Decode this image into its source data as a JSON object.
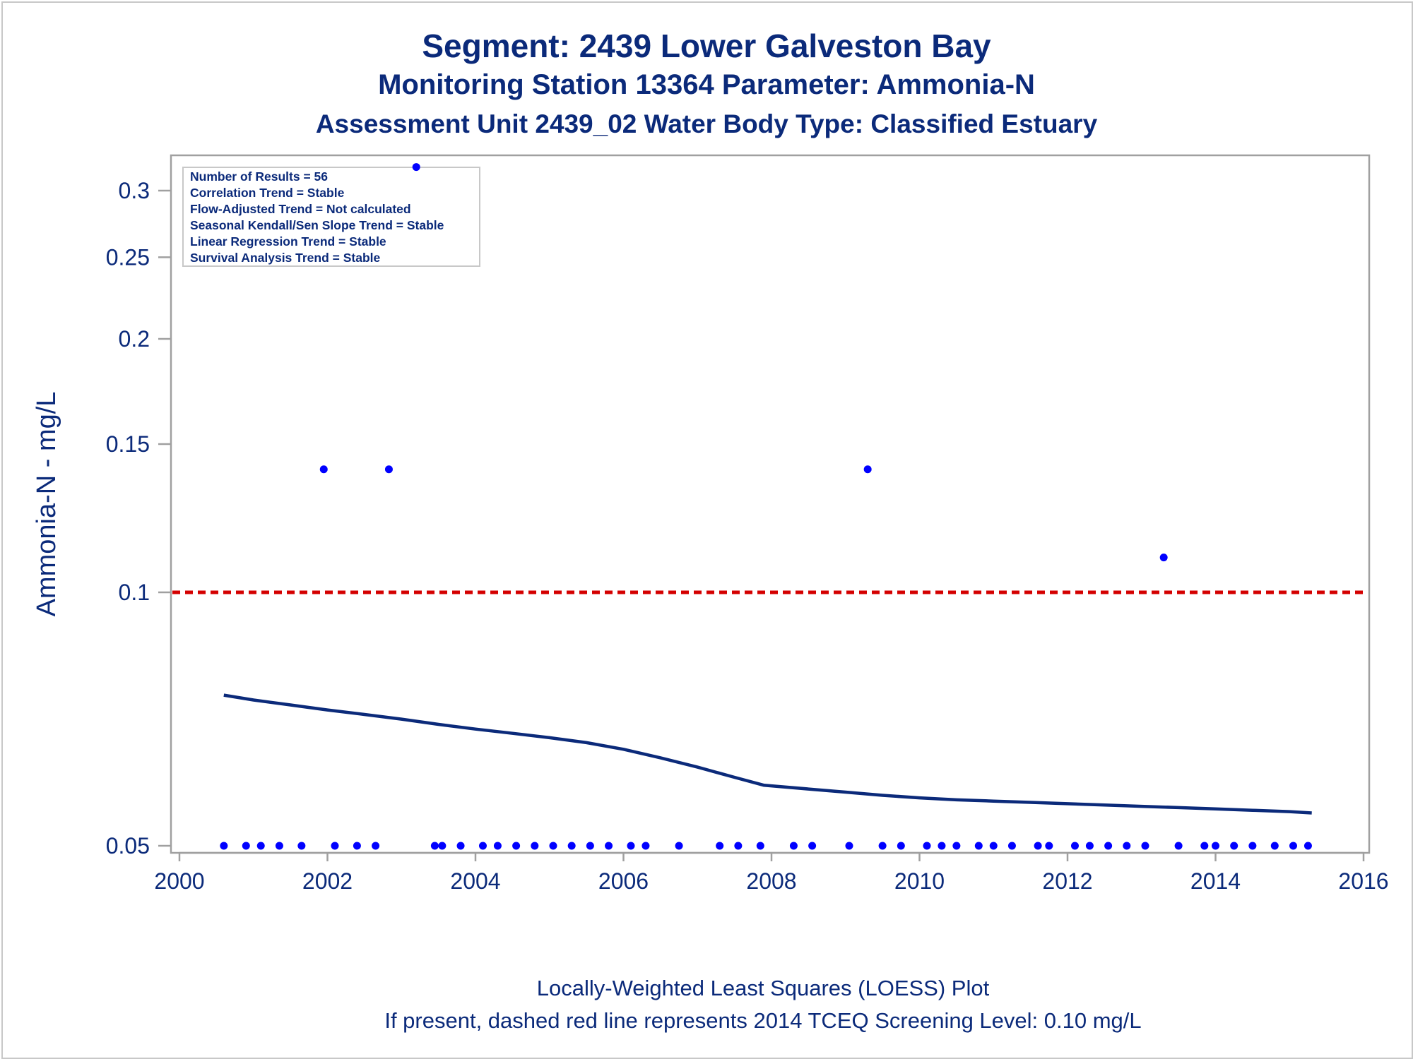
{
  "title": "Segment: 2439  Lower Galveston Bay",
  "subtitle": "Monitoring Station 13364 Parameter: Ammonia-N",
  "subtitle2": "Assessment Unit 2439_02   Water Body Type: Classified Estuary",
  "footnote1": "Locally-Weighted Least Squares (LOESS) Plot",
  "footnote2": "If present, dashed red line represents 2014 TCEQ Screening Level: 0.10 mg/L",
  "stats": [
    "Number of Results = 56",
    "Correlation Trend = Stable",
    "Flow-Adjusted Trend = Not calculated",
    "Seasonal Kendall/Sen Slope Trend = Stable",
    "Linear Regression Trend = Stable",
    "Survival Analysis Trend = Stable"
  ],
  "colors": {
    "text": "#0b2a7a",
    "points": "#0000ff",
    "loess": "#0b2a7a",
    "screening": "#d40000",
    "frame": "#a0a0a0"
  },
  "chart_data": {
    "type": "scatter",
    "yscale": "log",
    "ylabel": "Ammonia-N - mg/L",
    "xlabel": "",
    "xlim": [
      2000,
      2016
    ],
    "ylim": [
      0.048,
      0.325
    ],
    "xticks": [
      "2000",
      "2002",
      "2004",
      "2006",
      "2008",
      "2010",
      "2012",
      "2014",
      "2016"
    ],
    "xtick_values": [
      2000,
      2002,
      2004,
      2006,
      2008,
      2010,
      2012,
      2014,
      2016
    ],
    "yticks": [
      "0.05",
      "0.1",
      "0.15",
      "0.2",
      "0.25",
      "0.3"
    ],
    "ytick_values": [
      0.05,
      0.1,
      0.15,
      0.2,
      0.25,
      0.3
    ],
    "screening_level": 0.1,
    "points": [
      {
        "x": 2000.6,
        "y": 0.05
      },
      {
        "x": 2000.9,
        "y": 0.05
      },
      {
        "x": 2001.1,
        "y": 0.05
      },
      {
        "x": 2001.35,
        "y": 0.05
      },
      {
        "x": 2001.65,
        "y": 0.05
      },
      {
        "x": 2001.95,
        "y": 0.14
      },
      {
        "x": 2002.1,
        "y": 0.05
      },
      {
        "x": 2002.4,
        "y": 0.05
      },
      {
        "x": 2002.65,
        "y": 0.05
      },
      {
        "x": 2002.83,
        "y": 0.14
      },
      {
        "x": 2003.2,
        "y": 0.32
      },
      {
        "x": 2003.45,
        "y": 0.05
      },
      {
        "x": 2003.55,
        "y": 0.05
      },
      {
        "x": 2003.8,
        "y": 0.05
      },
      {
        "x": 2004.1,
        "y": 0.05
      },
      {
        "x": 2004.3,
        "y": 0.05
      },
      {
        "x": 2004.55,
        "y": 0.05
      },
      {
        "x": 2004.8,
        "y": 0.05
      },
      {
        "x": 2005.05,
        "y": 0.05
      },
      {
        "x": 2005.3,
        "y": 0.05
      },
      {
        "x": 2005.55,
        "y": 0.05
      },
      {
        "x": 2005.8,
        "y": 0.05
      },
      {
        "x": 2006.1,
        "y": 0.05
      },
      {
        "x": 2006.3,
        "y": 0.05
      },
      {
        "x": 2006.75,
        "y": 0.05
      },
      {
        "x": 2007.3,
        "y": 0.05
      },
      {
        "x": 2007.55,
        "y": 0.05
      },
      {
        "x": 2007.85,
        "y": 0.05
      },
      {
        "x": 2008.3,
        "y": 0.05
      },
      {
        "x": 2008.55,
        "y": 0.05
      },
      {
        "x": 2009.05,
        "y": 0.05
      },
      {
        "x": 2009.3,
        "y": 0.14
      },
      {
        "x": 2009.5,
        "y": 0.05
      },
      {
        "x": 2009.75,
        "y": 0.05
      },
      {
        "x": 2010.1,
        "y": 0.05
      },
      {
        "x": 2010.3,
        "y": 0.05
      },
      {
        "x": 2010.5,
        "y": 0.05
      },
      {
        "x": 2010.8,
        "y": 0.05
      },
      {
        "x": 2011.0,
        "y": 0.05
      },
      {
        "x": 2011.25,
        "y": 0.05
      },
      {
        "x": 2011.6,
        "y": 0.05
      },
      {
        "x": 2011.75,
        "y": 0.05
      },
      {
        "x": 2012.1,
        "y": 0.05
      },
      {
        "x": 2012.3,
        "y": 0.05
      },
      {
        "x": 2012.55,
        "y": 0.05
      },
      {
        "x": 2012.8,
        "y": 0.05
      },
      {
        "x": 2013.05,
        "y": 0.05
      },
      {
        "x": 2013.3,
        "y": 0.11
      },
      {
        "x": 2013.5,
        "y": 0.05
      },
      {
        "x": 2013.85,
        "y": 0.05
      },
      {
        "x": 2014.0,
        "y": 0.05
      },
      {
        "x": 2014.25,
        "y": 0.05
      },
      {
        "x": 2014.5,
        "y": 0.05
      },
      {
        "x": 2014.8,
        "y": 0.05
      },
      {
        "x": 2015.05,
        "y": 0.05
      },
      {
        "x": 2015.25,
        "y": 0.05
      }
    ],
    "loess_line": {
      "x": [
        2000.6,
        2001.0,
        2001.5,
        2002.0,
        2002.5,
        2003.0,
        2003.5,
        2004.0,
        2004.5,
        2005.0,
        2005.5,
        2006.0,
        2006.5,
        2007.0,
        2007.5,
        2007.9,
        2008.5,
        2009.0,
        2009.5,
        2010.0,
        2010.5,
        2011.0,
        2011.5,
        2012.0,
        2012.5,
        2013.0,
        2013.5,
        2014.0,
        2014.5,
        2015.0,
        2015.3
      ],
      "y": [
        0.0755,
        0.0745,
        0.0735,
        0.0725,
        0.0716,
        0.0707,
        0.0697,
        0.0688,
        0.068,
        0.0672,
        0.0663,
        0.0651,
        0.0636,
        0.062,
        0.0603,
        0.059,
        0.0584,
        0.0579,
        0.0574,
        0.057,
        0.0567,
        0.0565,
        0.0563,
        0.0561,
        0.0559,
        0.0557,
        0.0555,
        0.0553,
        0.0551,
        0.0549,
        0.0547
      ]
    }
  }
}
